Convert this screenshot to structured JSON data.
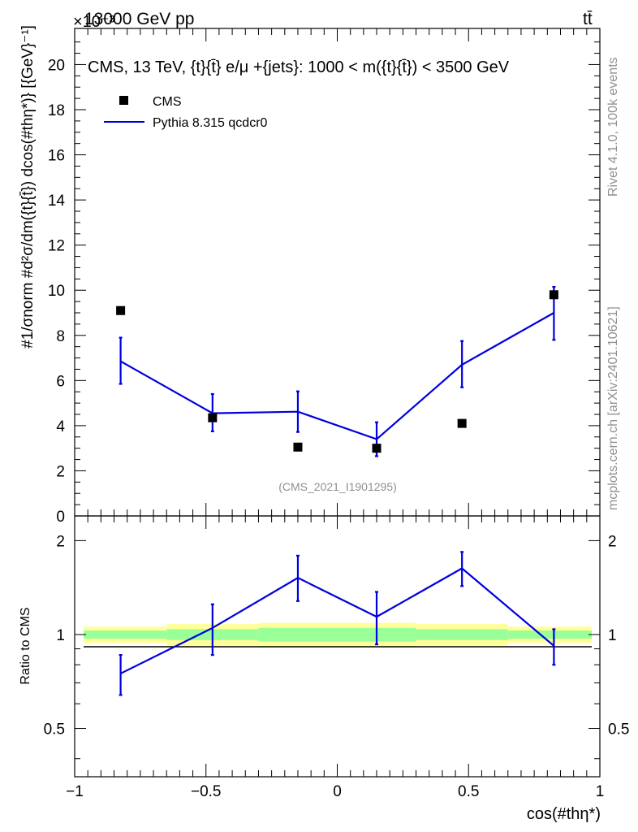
{
  "header": {
    "energy_label": "13000 GeV pp",
    "process_label": "tt̄",
    "exponent_label": "×10⁻³"
  },
  "side_labels": {
    "rivet": "Rivet 4.1.0,  100k events",
    "mcplots": "mcplots.cern.ch [arXiv:2401.10621]"
  },
  "chart_data": [
    {
      "type": "scatter",
      "panel": "main",
      "title": "CMS, 13 TeV, {t}{t̄} e/μ +{jets}: 1000 < m({t}{t̄}) < 3500 GeV",
      "watermark": "(CMS_2021_I1901295)",
      "xlabel": "cos(#thη*)",
      "ylabel": "#1/σnorm #d²σ/dm({t}{t̄}) dcos(#thη*)} [{GeV}⁻¹]",
      "xlim": [
        -1,
        1
      ],
      "ylim": [
        0,
        21.6
      ],
      "y_multiplier": "1e-3",
      "yticks": [
        0,
        2,
        4,
        6,
        8,
        10,
        12,
        14,
        16,
        18,
        20
      ],
      "ytick_labels": [
        "0",
        "2",
        "4",
        "6",
        "8",
        "10",
        "12",
        "14",
        "16",
        "18",
        "20"
      ],
      "legend_position": "top-left",
      "series": [
        {
          "name": "CMS",
          "kind": "markers",
          "color": "#000000",
          "x": [
            -0.825,
            -0.475,
            -0.15,
            0.15,
            0.475,
            0.825
          ],
          "values": [
            9.1,
            4.35,
            3.05,
            3.0,
            4.1,
            9.8
          ]
        },
        {
          "name": "Pythia 8.315 qcdcr0",
          "kind": "line",
          "color": "#0000dd",
          "x": [
            -0.825,
            -0.475,
            -0.15,
            0.15,
            0.475,
            0.825
          ],
          "values": [
            6.85,
            4.55,
            4.62,
            3.4,
            6.7,
            9.0
          ],
          "err_low": [
            1.0,
            0.8,
            0.9,
            0.75,
            1.0,
            1.2
          ],
          "err_high": [
            1.05,
            0.85,
            0.9,
            0.75,
            1.05,
            1.15
          ]
        }
      ]
    },
    {
      "type": "line",
      "panel": "ratio",
      "ylabel": "Ratio to CMS",
      "xlabel": "cos(#thη*)",
      "xlim": [
        -1,
        1
      ],
      "ylim": [
        0.35,
        2.4
      ],
      "yscale": "log",
      "yticks": [
        0.5,
        1,
        2
      ],
      "ytick_labels": [
        "0.5",
        "1",
        "2"
      ],
      "xticks": [
        -1,
        -0.5,
        0,
        0.5,
        1
      ],
      "xtick_labels": [
        "−1",
        "−0.5",
        "0",
        "0.5",
        "1"
      ],
      "reference_bands": {
        "bins": [
          [
            -1.0,
            -0.65
          ],
          [
            -0.65,
            -0.3
          ],
          [
            -0.3,
            0.0
          ],
          [
            0.0,
            0.3
          ],
          [
            0.3,
            0.65
          ],
          [
            0.65,
            1.0
          ]
        ],
        "outer": [
          0.06,
          0.08,
          0.09,
          0.09,
          0.08,
          0.06
        ],
        "inner": [
          0.03,
          0.04,
          0.05,
          0.05,
          0.04,
          0.03
        ],
        "outer_color": "#ffff99",
        "inner_color": "#99ff99"
      },
      "series": [
        {
          "name": "Pythia 8.315 qcdcr0",
          "color": "#0000dd",
          "x": [
            -0.825,
            -0.475,
            -0.15,
            0.15,
            0.475,
            0.825
          ],
          "values": [
            0.75,
            1.05,
            1.52,
            1.14,
            1.63,
            0.92
          ],
          "err_low": [
            0.11,
            0.19,
            0.24,
            0.21,
            0.2,
            0.12
          ],
          "err_high": [
            0.11,
            0.2,
            0.27,
            0.23,
            0.21,
            0.12
          ]
        }
      ]
    }
  ]
}
